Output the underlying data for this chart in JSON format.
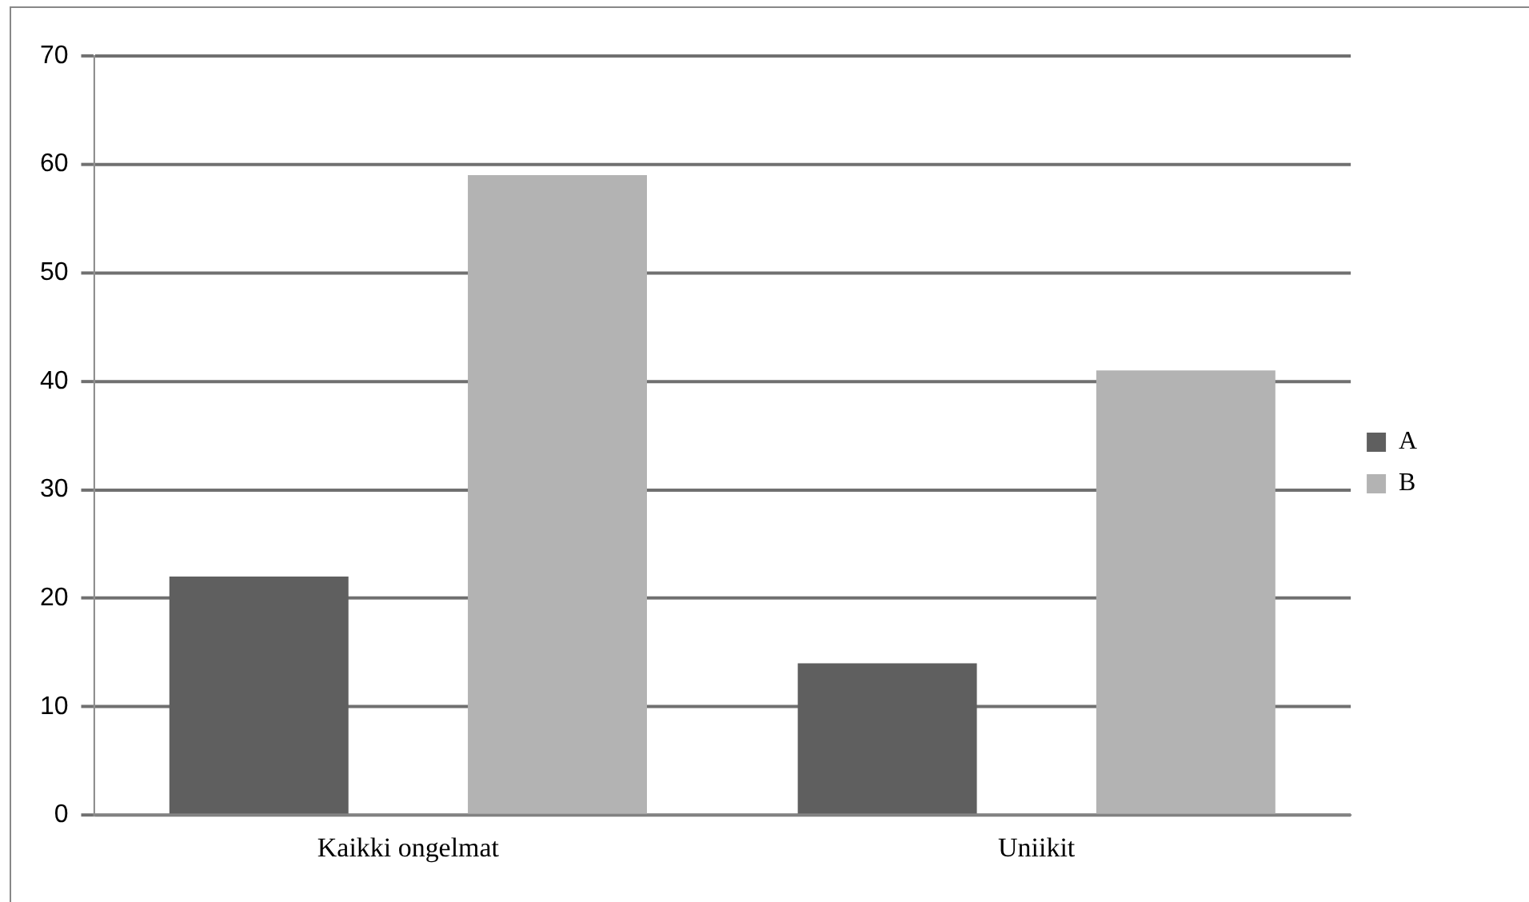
{
  "chart_data": {
    "type": "bar",
    "categories": [
      "Kaikki ongelmat",
      "Uniikit"
    ],
    "series": [
      {
        "name": "A",
        "color": "#5f5f5f",
        "values": [
          22,
          14
        ]
      },
      {
        "name": "B",
        "color": "#b3b3b3",
        "values": [
          59,
          41
        ]
      }
    ],
    "ylim": [
      0,
      70
    ],
    "yticks": [
      0,
      10,
      20,
      30,
      40,
      50,
      60,
      70
    ],
    "grid": "y",
    "legend": "right"
  }
}
